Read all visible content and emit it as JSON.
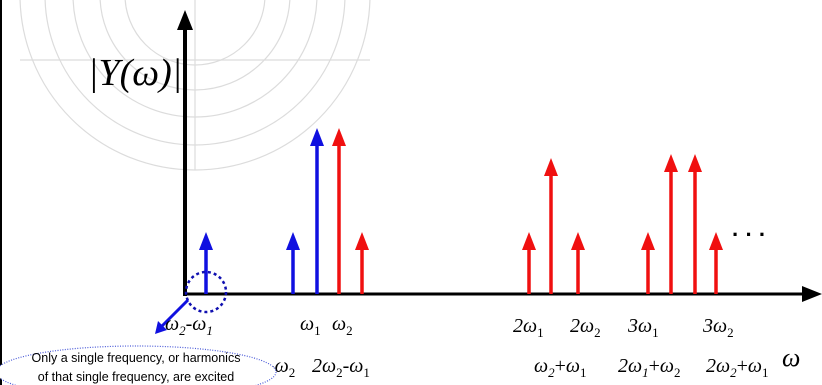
{
  "ylabel": "|Y(ω)|",
  "xlabel": "ω",
  "ellipsis": "· · ·",
  "colors": {
    "input": "#1010e0",
    "output": "#f01010",
    "axis": "#000000",
    "note_border": "#4a5ad8",
    "watermark": "#d9d9d9"
  },
  "labels": {
    "w2_minus_w1": {
      "a": "ω",
      "a_sub": "2",
      "op": "-",
      "b": "ω",
      "b_sub": "1"
    },
    "w1": {
      "a": "ω",
      "a_sub": "1"
    },
    "w2": {
      "a": "ω",
      "a_sub": "2"
    },
    "two_w1": {
      "coef": "2",
      "a": "ω",
      "a_sub": "1"
    },
    "two_w2": {
      "coef": "2",
      "a": "ω",
      "a_sub": "2"
    },
    "three_w1": {
      "coef": "3",
      "a": "ω",
      "a_sub": "1"
    },
    "three_w2": {
      "coef": "3",
      "a": "ω",
      "a_sub": "2"
    },
    "w1_minus_w2": {
      "op": "-",
      "a": "ω",
      "a_sub": "2"
    },
    "two_w2_minus_w1": {
      "coef": "2",
      "a": "ω",
      "a_sub": "2",
      "op": "-",
      "b": "ω",
      "b_sub": "1"
    },
    "w2_plus_w1": {
      "a": "ω",
      "a_sub": "2",
      "op": "+",
      "b": "ω",
      "b_sub": "1"
    },
    "two_w1_plus_w2": {
      "coef": "2",
      "a": "ω",
      "a_sub": "1",
      "op": "+",
      "b": "ω",
      "b_sub": "2"
    },
    "two_w2_plus_w1": {
      "coef": "2",
      "a": "ω",
      "a_sub": "2",
      "op": "+",
      "b": "ω",
      "b_sub": "1"
    }
  },
  "note": {
    "line1": "Only a single frequency, or harmonics",
    "line2": "of that single frequency, are excited"
  }
}
